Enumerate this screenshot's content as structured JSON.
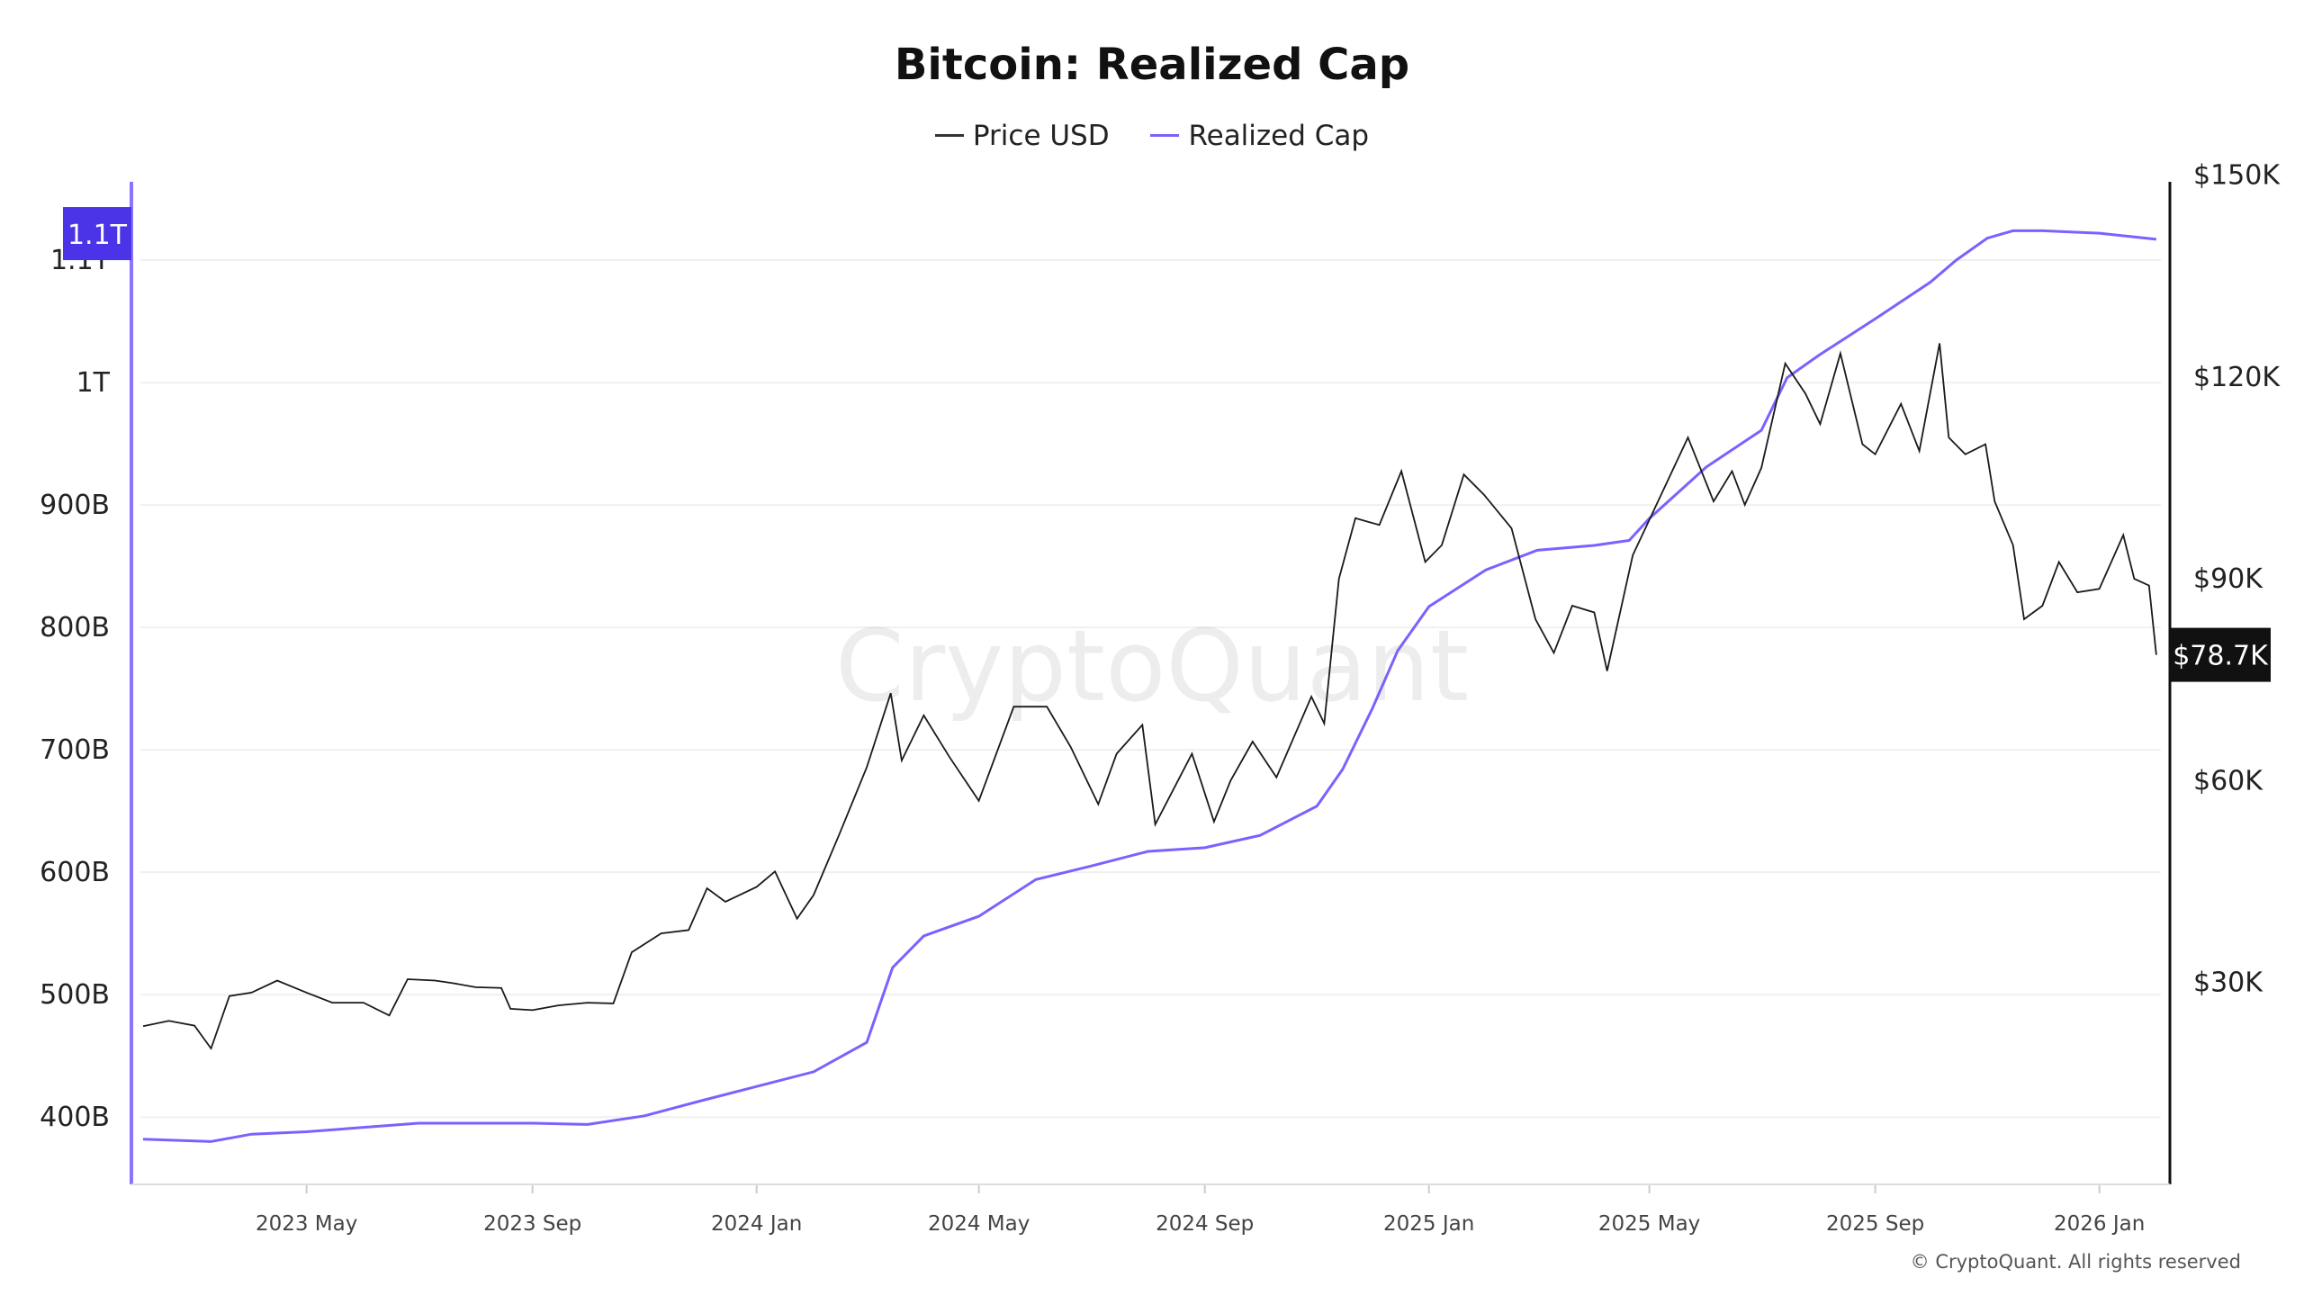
{
  "chart_data": {
    "type": "line",
    "title": "Bitcoin: Realized Cap",
    "legend_placement": "top-center",
    "grid": true,
    "watermark": "CryptoQuant",
    "copyright": "© CryptoQuant. All rights reserved",
    "x_ticks": [
      {
        "date": "2023-05-01",
        "label": "2023 May"
      },
      {
        "date": "2023-09-01",
        "label": "2023 Sep"
      },
      {
        "date": "2024-01-01",
        "label": "2024 Jan"
      },
      {
        "date": "2024-05-01",
        "label": "2024 May"
      },
      {
        "date": "2024-09-01",
        "label": "2024 Sep"
      },
      {
        "date": "2025-01-01",
        "label": "2025 Jan"
      },
      {
        "date": "2025-05-01",
        "label": "2025 May"
      },
      {
        "date": "2025-09-01",
        "label": "2025 Sep"
      },
      {
        "date": "2026-01-01",
        "label": "2026 Jan"
      }
    ],
    "xlim": [
      "2023-02-01",
      "2026-02-03"
    ],
    "left_axis": {
      "ylim": [
        345,
        1164
      ],
      "unit": "billion USD",
      "ticks": [
        {
          "v": 400,
          "label": "400B"
        },
        {
          "v": 500,
          "label": "500B"
        },
        {
          "v": 600,
          "label": "600B"
        },
        {
          "v": 700,
          "label": "700B"
        },
        {
          "v": 800,
          "label": "800B"
        },
        {
          "v": 900,
          "label": "900B"
        },
        {
          "v": 1000,
          "label": "1T"
        },
        {
          "v": 1100,
          "label": "1.1T"
        }
      ],
      "current_label": "1.1T"
    },
    "right_axis": {
      "ylim": [
        0,
        149000
      ],
      "ticks": [
        {
          "v": 30000,
          "label": "$30K"
        },
        {
          "v": 60000,
          "label": "$60K"
        },
        {
          "v": 90000,
          "label": "$90K"
        },
        {
          "v": 120000,
          "label": "$120K"
        },
        {
          "v": 150000,
          "label": "$150K"
        }
      ],
      "current_label": "$78.7K"
    },
    "colors": {
      "price": "#1a1a1a",
      "realized": "#7B61FF",
      "left_axis": "#8A73FF",
      "left_badge": "#4B33E8",
      "right_badge": "#111111"
    },
    "series": [
      {
        "name": "Price USD",
        "axis": "right",
        "points": [
          [
            "2023-02-01",
            23500
          ],
          [
            "2023-02-15",
            24300
          ],
          [
            "2023-03-01",
            23600
          ],
          [
            "2023-03-10",
            20200
          ],
          [
            "2023-03-20",
            28000
          ],
          [
            "2023-04-01",
            28500
          ],
          [
            "2023-04-15",
            30300
          ],
          [
            "2023-05-01",
            28500
          ],
          [
            "2023-05-15",
            27000
          ],
          [
            "2023-06-01",
            27000
          ],
          [
            "2023-06-15",
            25100
          ],
          [
            "2023-06-25",
            30500
          ],
          [
            "2023-07-10",
            30300
          ],
          [
            "2023-07-20",
            29900
          ],
          [
            "2023-08-01",
            29300
          ],
          [
            "2023-08-15",
            29200
          ],
          [
            "2023-08-20",
            26100
          ],
          [
            "2023-09-01",
            25900
          ],
          [
            "2023-09-15",
            26600
          ],
          [
            "2023-10-01",
            27000
          ],
          [
            "2023-10-15",
            26900
          ],
          [
            "2023-10-25",
            34500
          ],
          [
            "2023-11-10",
            37300
          ],
          [
            "2023-11-25",
            37800
          ],
          [
            "2023-12-05",
            44000
          ],
          [
            "2023-12-15",
            42000
          ],
          [
            "2024-01-01",
            44200
          ],
          [
            "2024-01-11",
            46500
          ],
          [
            "2024-01-23",
            39500
          ],
          [
            "2024-02-01",
            43000
          ],
          [
            "2024-02-15",
            52000
          ],
          [
            "2024-03-01",
            62000
          ],
          [
            "2024-03-14",
            73000
          ],
          [
            "2024-03-20",
            63000
          ],
          [
            "2024-04-01",
            69700
          ],
          [
            "2024-04-15",
            63500
          ],
          [
            "2024-05-01",
            57000
          ],
          [
            "2024-05-20",
            71000
          ],
          [
            "2024-06-07",
            71000
          ],
          [
            "2024-06-20",
            65000
          ],
          [
            "2024-07-05",
            56500
          ],
          [
            "2024-07-15",
            64000
          ],
          [
            "2024-07-29",
            68300
          ],
          [
            "2024-08-05",
            53500
          ],
          [
            "2024-08-25",
            64000
          ],
          [
            "2024-09-06",
            53900
          ],
          [
            "2024-09-15",
            60000
          ],
          [
            "2024-09-27",
            65800
          ],
          [
            "2024-10-10",
            60500
          ],
          [
            "2024-10-29",
            72500
          ],
          [
            "2024-11-05",
            68500
          ],
          [
            "2024-11-13",
            90000
          ],
          [
            "2024-11-22",
            99000
          ],
          [
            "2024-12-05",
            98000
          ],
          [
            "2024-12-17",
            106000
          ],
          [
            "2024-12-30",
            92500
          ],
          [
            "2025-01-08",
            95000
          ],
          [
            "2025-01-20",
            105500
          ],
          [
            "2025-01-31",
            102500
          ],
          [
            "2025-02-15",
            97500
          ],
          [
            "2025-02-28",
            84000
          ],
          [
            "2025-03-10",
            79000
          ],
          [
            "2025-03-20",
            86000
          ],
          [
            "2025-04-01",
            85000
          ],
          [
            "2025-04-08",
            76300
          ],
          [
            "2025-04-22",
            93500
          ],
          [
            "2025-05-10",
            104000
          ],
          [
            "2025-05-22",
            111000
          ],
          [
            "2025-06-05",
            101500
          ],
          [
            "2025-06-15",
            106000
          ],
          [
            "2025-06-22",
            101000
          ],
          [
            "2025-07-01",
            106500
          ],
          [
            "2025-07-14",
            122000
          ],
          [
            "2025-07-25",
            117500
          ],
          [
            "2025-08-02",
            113000
          ],
          [
            "2025-08-13",
            123500
          ],
          [
            "2025-08-25",
            110000
          ],
          [
            "2025-09-01",
            108500
          ],
          [
            "2025-09-15",
            116000
          ],
          [
            "2025-09-25",
            109000
          ],
          [
            "2025-10-06",
            125000
          ],
          [
            "2025-10-11",
            111000
          ],
          [
            "2025-10-20",
            108500
          ],
          [
            "2025-10-31",
            110000
          ],
          [
            "2025-11-05",
            101500
          ],
          [
            "2025-11-15",
            95000
          ],
          [
            "2025-11-21",
            84000
          ],
          [
            "2025-12-01",
            86000
          ],
          [
            "2025-12-10",
            92500
          ],
          [
            "2025-12-20",
            88000
          ],
          [
            "2026-01-01",
            88500
          ],
          [
            "2026-01-14",
            96500
          ],
          [
            "2026-01-20",
            90000
          ],
          [
            "2026-01-28",
            89000
          ],
          [
            "2026-02-01",
            78700
          ]
        ]
      },
      {
        "name": "Realized Cap",
        "axis": "left",
        "points": [
          [
            "2023-02-01",
            382
          ],
          [
            "2023-03-10",
            380
          ],
          [
            "2023-04-01",
            386
          ],
          [
            "2023-05-01",
            388
          ],
          [
            "2023-07-01",
            395
          ],
          [
            "2023-09-01",
            395
          ],
          [
            "2023-10-01",
            394
          ],
          [
            "2023-11-01",
            401
          ],
          [
            "2023-12-01",
            413
          ],
          [
            "2024-01-01",
            425
          ],
          [
            "2024-02-01",
            437
          ],
          [
            "2024-03-01",
            461
          ],
          [
            "2024-03-15",
            522
          ],
          [
            "2024-04-01",
            548
          ],
          [
            "2024-05-01",
            564
          ],
          [
            "2024-06-01",
            594
          ],
          [
            "2024-07-01",
            605
          ],
          [
            "2024-08-01",
            617
          ],
          [
            "2024-09-01",
            620
          ],
          [
            "2024-10-01",
            630
          ],
          [
            "2024-11-01",
            654
          ],
          [
            "2024-11-15",
            684
          ],
          [
            "2024-12-01",
            733
          ],
          [
            "2024-12-15",
            781
          ],
          [
            "2025-01-01",
            817
          ],
          [
            "2025-02-01",
            847
          ],
          [
            "2025-03-01",
            863
          ],
          [
            "2025-04-01",
            867
          ],
          [
            "2025-04-20",
            871
          ],
          [
            "2025-05-01",
            889
          ],
          [
            "2025-06-01",
            931
          ],
          [
            "2025-07-01",
            961
          ],
          [
            "2025-07-15",
            1004
          ],
          [
            "2025-08-01",
            1022
          ],
          [
            "2025-09-01",
            1052
          ],
          [
            "2025-10-01",
            1082
          ],
          [
            "2025-10-15",
            1100
          ],
          [
            "2025-11-01",
            1118
          ],
          [
            "2025-11-15",
            1124
          ],
          [
            "2025-12-01",
            1124
          ],
          [
            "2026-01-01",
            1122
          ],
          [
            "2026-02-01",
            1117
          ]
        ]
      }
    ]
  }
}
